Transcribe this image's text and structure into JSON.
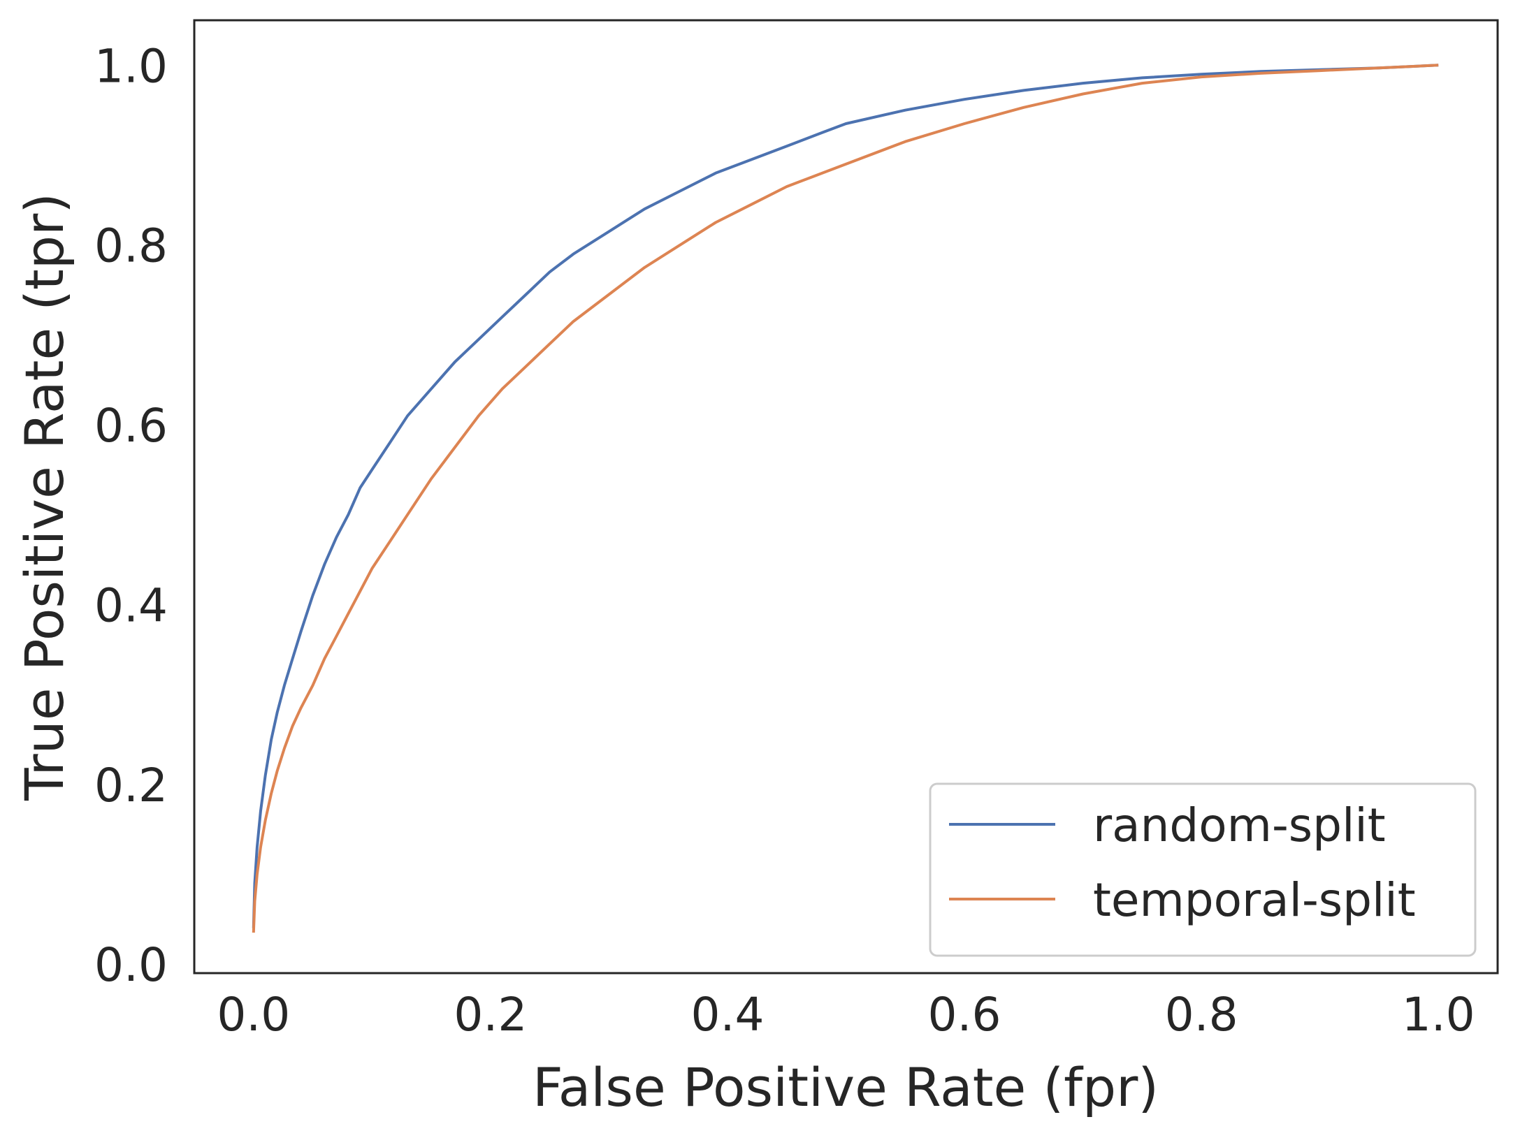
{
  "chart_data": {
    "type": "line",
    "title": "",
    "xlabel": "False Positive Rate (fpr)",
    "ylabel": "True Positive Rate (tpr)",
    "xlim": [
      -0.05,
      1.05
    ],
    "ylim": [
      -0.01,
      1.05
    ],
    "xticks": [
      0.0,
      0.2,
      0.4,
      0.6,
      0.8,
      1.0
    ],
    "xtick_labels": [
      "0.0",
      "0.2",
      "0.4",
      "0.6",
      "0.8",
      "1.0"
    ],
    "yticks": [
      0.0,
      0.2,
      0.4,
      0.6,
      0.8,
      1.0
    ],
    "ytick_labels": [
      "0.0",
      "0.2",
      "0.4",
      "0.6",
      "0.8",
      "1.0"
    ],
    "grid": false,
    "legend_position": "lower-right",
    "series": [
      {
        "name": "random-split",
        "color": "#4c72b0",
        "x": [
          0.0,
          0.001,
          0.003,
          0.006,
          0.01,
          0.015,
          0.02,
          0.026,
          0.033,
          0.04,
          0.05,
          0.06,
          0.07,
          0.08,
          0.09,
          0.1,
          0.115,
          0.13,
          0.15,
          0.17,
          0.19,
          0.21,
          0.23,
          0.25,
          0.27,
          0.3,
          0.33,
          0.36,
          0.39,
          0.42,
          0.45,
          0.48,
          0.5,
          0.55,
          0.6,
          0.65,
          0.7,
          0.75,
          0.8,
          0.85,
          0.9,
          0.95,
          1.0
        ],
        "y": [
          0.04,
          0.09,
          0.13,
          0.17,
          0.21,
          0.25,
          0.28,
          0.31,
          0.34,
          0.37,
          0.41,
          0.445,
          0.475,
          0.5,
          0.53,
          0.55,
          0.58,
          0.61,
          0.64,
          0.67,
          0.695,
          0.72,
          0.745,
          0.77,
          0.79,
          0.815,
          0.84,
          0.86,
          0.88,
          0.895,
          0.91,
          0.925,
          0.935,
          0.95,
          0.962,
          0.972,
          0.98,
          0.986,
          0.99,
          0.993,
          0.995,
          0.997,
          1.0
        ]
      },
      {
        "name": "temporal-split",
        "color": "#dd8452",
        "x": [
          0.0,
          0.001,
          0.003,
          0.006,
          0.01,
          0.015,
          0.02,
          0.026,
          0.033,
          0.04,
          0.05,
          0.06,
          0.07,
          0.08,
          0.09,
          0.1,
          0.115,
          0.13,
          0.15,
          0.17,
          0.19,
          0.21,
          0.23,
          0.25,
          0.27,
          0.3,
          0.33,
          0.36,
          0.39,
          0.42,
          0.45,
          0.48,
          0.5,
          0.55,
          0.6,
          0.65,
          0.7,
          0.75,
          0.8,
          0.85,
          0.9,
          0.95,
          1.0
        ],
        "y": [
          0.035,
          0.07,
          0.1,
          0.13,
          0.16,
          0.19,
          0.215,
          0.24,
          0.265,
          0.285,
          0.31,
          0.34,
          0.365,
          0.39,
          0.415,
          0.44,
          0.47,
          0.5,
          0.54,
          0.575,
          0.61,
          0.64,
          0.665,
          0.69,
          0.715,
          0.745,
          0.775,
          0.8,
          0.825,
          0.845,
          0.865,
          0.88,
          0.89,
          0.915,
          0.935,
          0.953,
          0.968,
          0.98,
          0.987,
          0.991,
          0.994,
          0.997,
          1.0
        ]
      }
    ]
  }
}
